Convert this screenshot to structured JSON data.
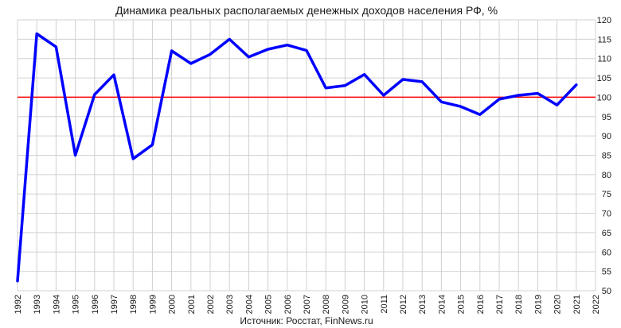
{
  "chart_data": {
    "type": "line",
    "title": "Динамика реальных располагаемых денежных доходов населения РФ, %",
    "source": "Источник: Росстат, FinNews.ru",
    "xlabel": "",
    "ylabel": "",
    "ylim": [
      50,
      120
    ],
    "y_ticks": [
      50,
      55,
      60,
      65,
      70,
      75,
      80,
      85,
      90,
      95,
      100,
      105,
      110,
      115,
      120
    ],
    "x_ticks": [
      "1992",
      "1993",
      "1994",
      "1995",
      "1996",
      "1997",
      "1998",
      "1999",
      "2000",
      "2001",
      "2002",
      "2003",
      "2004",
      "2005",
      "2006",
      "2007",
      "2008",
      "2009",
      "2010",
      "2011",
      "2012",
      "2013",
      "2014",
      "2015",
      "2016",
      "2017",
      "2018",
      "2019",
      "2020",
      "2021",
      "2022"
    ],
    "grid": true,
    "series": [
      {
        "color": "#0000ff",
        "x": [
          1992,
          1993,
          1994,
          1995,
          1996,
          1997,
          1998,
          1999,
          2000,
          2001,
          2002,
          2003,
          2004,
          2005,
          2006,
          2007,
          2008,
          2009,
          2010,
          2011,
          2012,
          2013,
          2014,
          2015,
          2016,
          2017,
          2018,
          2019,
          2020,
          2021
        ],
        "values": [
          52.5,
          116.4,
          113.0,
          85.0,
          100.7,
          105.8,
          84.1,
          87.7,
          112.0,
          108.7,
          111.1,
          115.0,
          110.4,
          112.4,
          113.5,
          112.1,
          102.4,
          103.0,
          105.9,
          100.5,
          104.6,
          104.0,
          98.8,
          97.6,
          95.5,
          99.5,
          100.5,
          101.0,
          98.0,
          103.2
        ]
      }
    ],
    "reference_line": {
      "y": 100,
      "color": "#ff0000"
    }
  }
}
